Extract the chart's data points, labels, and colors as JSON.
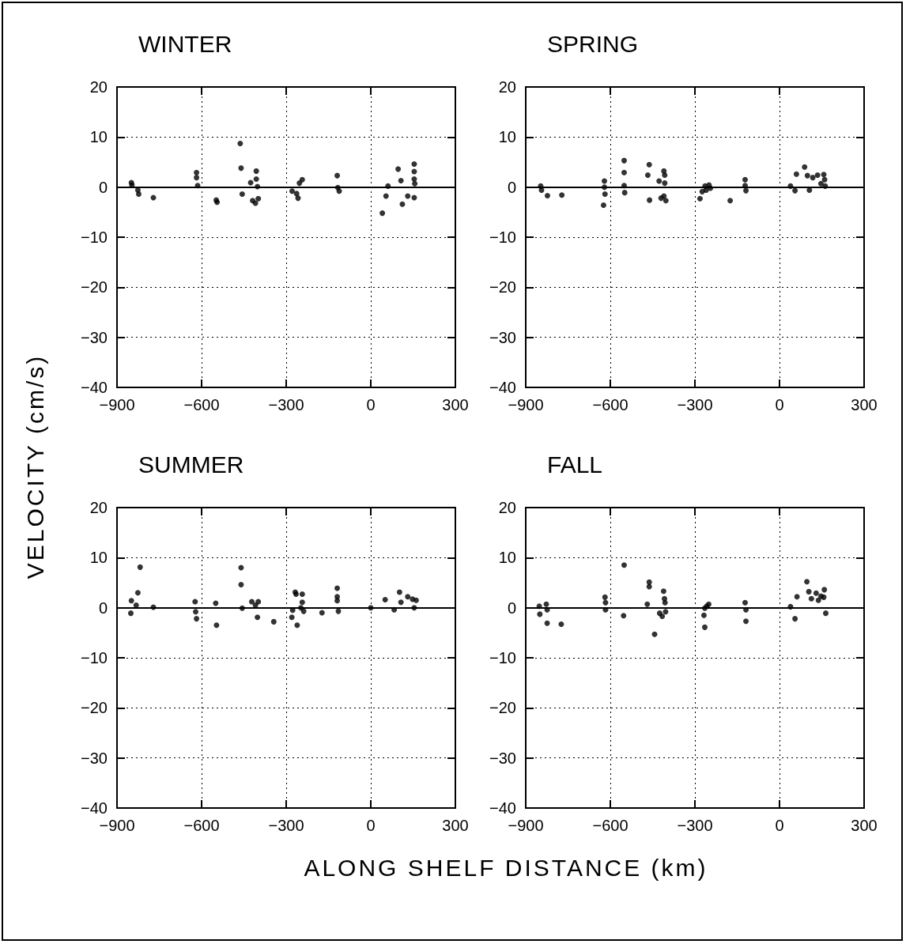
{
  "chart_data": [
    {
      "type": "scatter",
      "title": "WINTER",
      "ylabel": "VELOCITY (cm/s)",
      "marker": "circle",
      "grid": true,
      "xlim": [
        -900,
        300
      ],
      "xticks": [
        -900,
        -600,
        -300,
        0,
        300
      ],
      "ylim": [
        -40,
        20
      ],
      "yticks": [
        -40,
        -30,
        -20,
        -10,
        0,
        10,
        20
      ],
      "ref_lines": [
        {
          "axis": "y",
          "value": 0,
          "color": "#000000"
        }
      ],
      "series": [
        {
          "color": "#000000",
          "x": [
            -849,
            -847,
            -826,
            -823,
            -771,
            -618,
            -618,
            -614,
            -548,
            -545,
            -463,
            -460,
            -456,
            -426,
            -406,
            -406,
            -402,
            -419,
            -409,
            -399,
            -279,
            -263,
            -258,
            -253,
            -243,
            -119,
            -117,
            -112,
            41,
            54,
            61,
            97,
            107,
            112,
            131,
            154,
            154,
            154,
            156,
            154
          ],
          "values": [
            0.9,
            0.4,
            -0.6,
            -1.4,
            -2.1,
            2.9,
            1.9,
            0.3,
            -2.6,
            -3.0,
            8.7,
            3.8,
            -1.4,
            0.9,
            3.2,
            1.6,
            0.1,
            -2.7,
            -3.2,
            -2.3,
            -0.8,
            -1.3,
            -2.2,
            0.8,
            1.5,
            2.3,
            -0.1,
            -0.8,
            -5.2,
            -1.8,
            0.2,
            3.6,
            1.3,
            -3.4,
            -1.8,
            4.6,
            3.1,
            1.6,
            0.7,
            -2.1
          ]
        }
      ]
    },
    {
      "type": "scatter",
      "title": "SPRING",
      "marker": "circle",
      "grid": true,
      "xlim": [
        -900,
        300
      ],
      "xticks": [
        -900,
        -600,
        -300,
        0,
        300
      ],
      "ylim": [
        -40,
        20
      ],
      "yticks": [
        -40,
        -30,
        -20,
        -10,
        0,
        10,
        20
      ],
      "ref_lines": [
        {
          "axis": "y",
          "value": 0,
          "color": "#000000"
        }
      ],
      "series": [
        {
          "color": "#000000",
          "x": [
            -847,
            -844,
            -823,
            -772,
            -621,
            -621,
            -619,
            -624,
            -551,
            -551,
            -551,
            -549,
            -462,
            -467,
            -461,
            -427,
            -410,
            -407,
            -407,
            -410,
            -403,
            -420,
            -282,
            -274,
            -264,
            -250,
            -245,
            -260,
            -175,
            -122,
            -122,
            -119,
            39,
            55,
            60,
            89,
            99,
            106,
            118,
            135,
            157,
            160,
            162,
            147
          ],
          "values": [
            0.2,
            -0.6,
            -1.7,
            -1.6,
            1.2,
            0,
            -1.4,
            -3.6,
            5.3,
            2.9,
            0.3,
            -1.1,
            4.5,
            2.4,
            -2.6,
            1.2,
            3.2,
            2.4,
            0.8,
            -1.8,
            -2.7,
            -2.2,
            -2.3,
            -0.9,
            0.2,
            0.4,
            -0.2,
            -0.6,
            -2.7,
            1.5,
            0.3,
            -0.7,
            0.2,
            -0.7,
            2.6,
            4.0,
            2.3,
            -0.6,
            1.9,
            2.4,
            2.5,
            1.5,
            0.2,
            0.7
          ]
        }
      ]
    },
    {
      "type": "scatter",
      "title": "SUMMER",
      "xlabel": "ALONG SHELF DISTANCE (km)",
      "marker": "circle",
      "grid": true,
      "xlim": [
        -900,
        300
      ],
      "xticks": [
        -900,
        -600,
        -300,
        0,
        300
      ],
      "ylim": [
        -40,
        20
      ],
      "yticks": [
        -40,
        -30,
        -20,
        -10,
        0,
        10,
        20
      ],
      "ref_lines": [
        {
          "axis": "y",
          "value": 0,
          "color": "#000000"
        }
      ],
      "series": [
        {
          "color": "#000000",
          "x": [
            -818,
            -826,
            -849,
            -832,
            -851,
            -771,
            -623,
            -621,
            -618,
            -550,
            -547,
            -460,
            -460,
            -456,
            -422,
            -409,
            -399,
            -402,
            -344,
            -280,
            -277,
            -268,
            -265,
            -261,
            -243,
            -243,
            -238,
            -248,
            -173,
            -119,
            -119,
            -119,
            -115,
            0,
            51,
            83,
            102,
            107,
            131,
            148,
            161,
            154
          ],
          "values": [
            8.1,
            3.0,
            1.4,
            0.5,
            -1.1,
            0.1,
            1.2,
            -0.8,
            -2.2,
            0.9,
            -3.5,
            8.0,
            4.6,
            -0.1,
            1.2,
            0.5,
            1.2,
            -1.9,
            -2.8,
            -1.9,
            -0.5,
            3.1,
            2.7,
            -3.5,
            2.7,
            1.1,
            -0.7,
            0,
            -1.0,
            3.9,
            2.2,
            1.4,
            -0.7,
            0,
            1.6,
            -0.4,
            3.1,
            1.1,
            2.2,
            1.7,
            1.5,
            0
          ]
        }
      ]
    },
    {
      "type": "scatter",
      "title": "FALL",
      "marker": "circle",
      "grid": true,
      "xlim": [
        -900,
        300
      ],
      "xticks": [
        -900,
        -600,
        -300,
        0,
        300
      ],
      "ylim": [
        -40,
        20
      ],
      "yticks": [
        -40,
        -30,
        -20,
        -10,
        0,
        10,
        20
      ],
      "ref_lines": [
        {
          "axis": "y",
          "value": 0,
          "color": "#000000"
        }
      ],
      "series": [
        {
          "color": "#000000",
          "x": [
            -852,
            -850,
            -827,
            -824,
            -824,
            -774,
            -619,
            -617,
            -617,
            -551,
            -553,
            -462,
            -462,
            -469,
            -443,
            -411,
            -408,
            -406,
            -425,
            -416,
            -404,
            -265,
            -268,
            -265,
            -251,
            -258,
            -122,
            -119,
            -119,
            39,
            55,
            62,
            97,
            104,
            113,
            130,
            138,
            159,
            157,
            164,
            147
          ],
          "values": [
            0.3,
            -1.3,
            0.7,
            -0.4,
            -3.1,
            -3.3,
            2.1,
            1.0,
            -0.4,
            8.5,
            -1.6,
            5.1,
            4.2,
            0.7,
            -5.3,
            3.3,
            1.8,
            1.0,
            -1.1,
            -1.7,
            -0.8,
            -0.1,
            -1.5,
            -3.9,
            0.7,
            0.3,
            1.0,
            -0.4,
            -2.7,
            0.2,
            -2.2,
            2.2,
            5.2,
            3.2,
            1.8,
            2.9,
            1.5,
            3.6,
            2.1,
            -1.1,
            2.3
          ]
        }
      ]
    }
  ]
}
